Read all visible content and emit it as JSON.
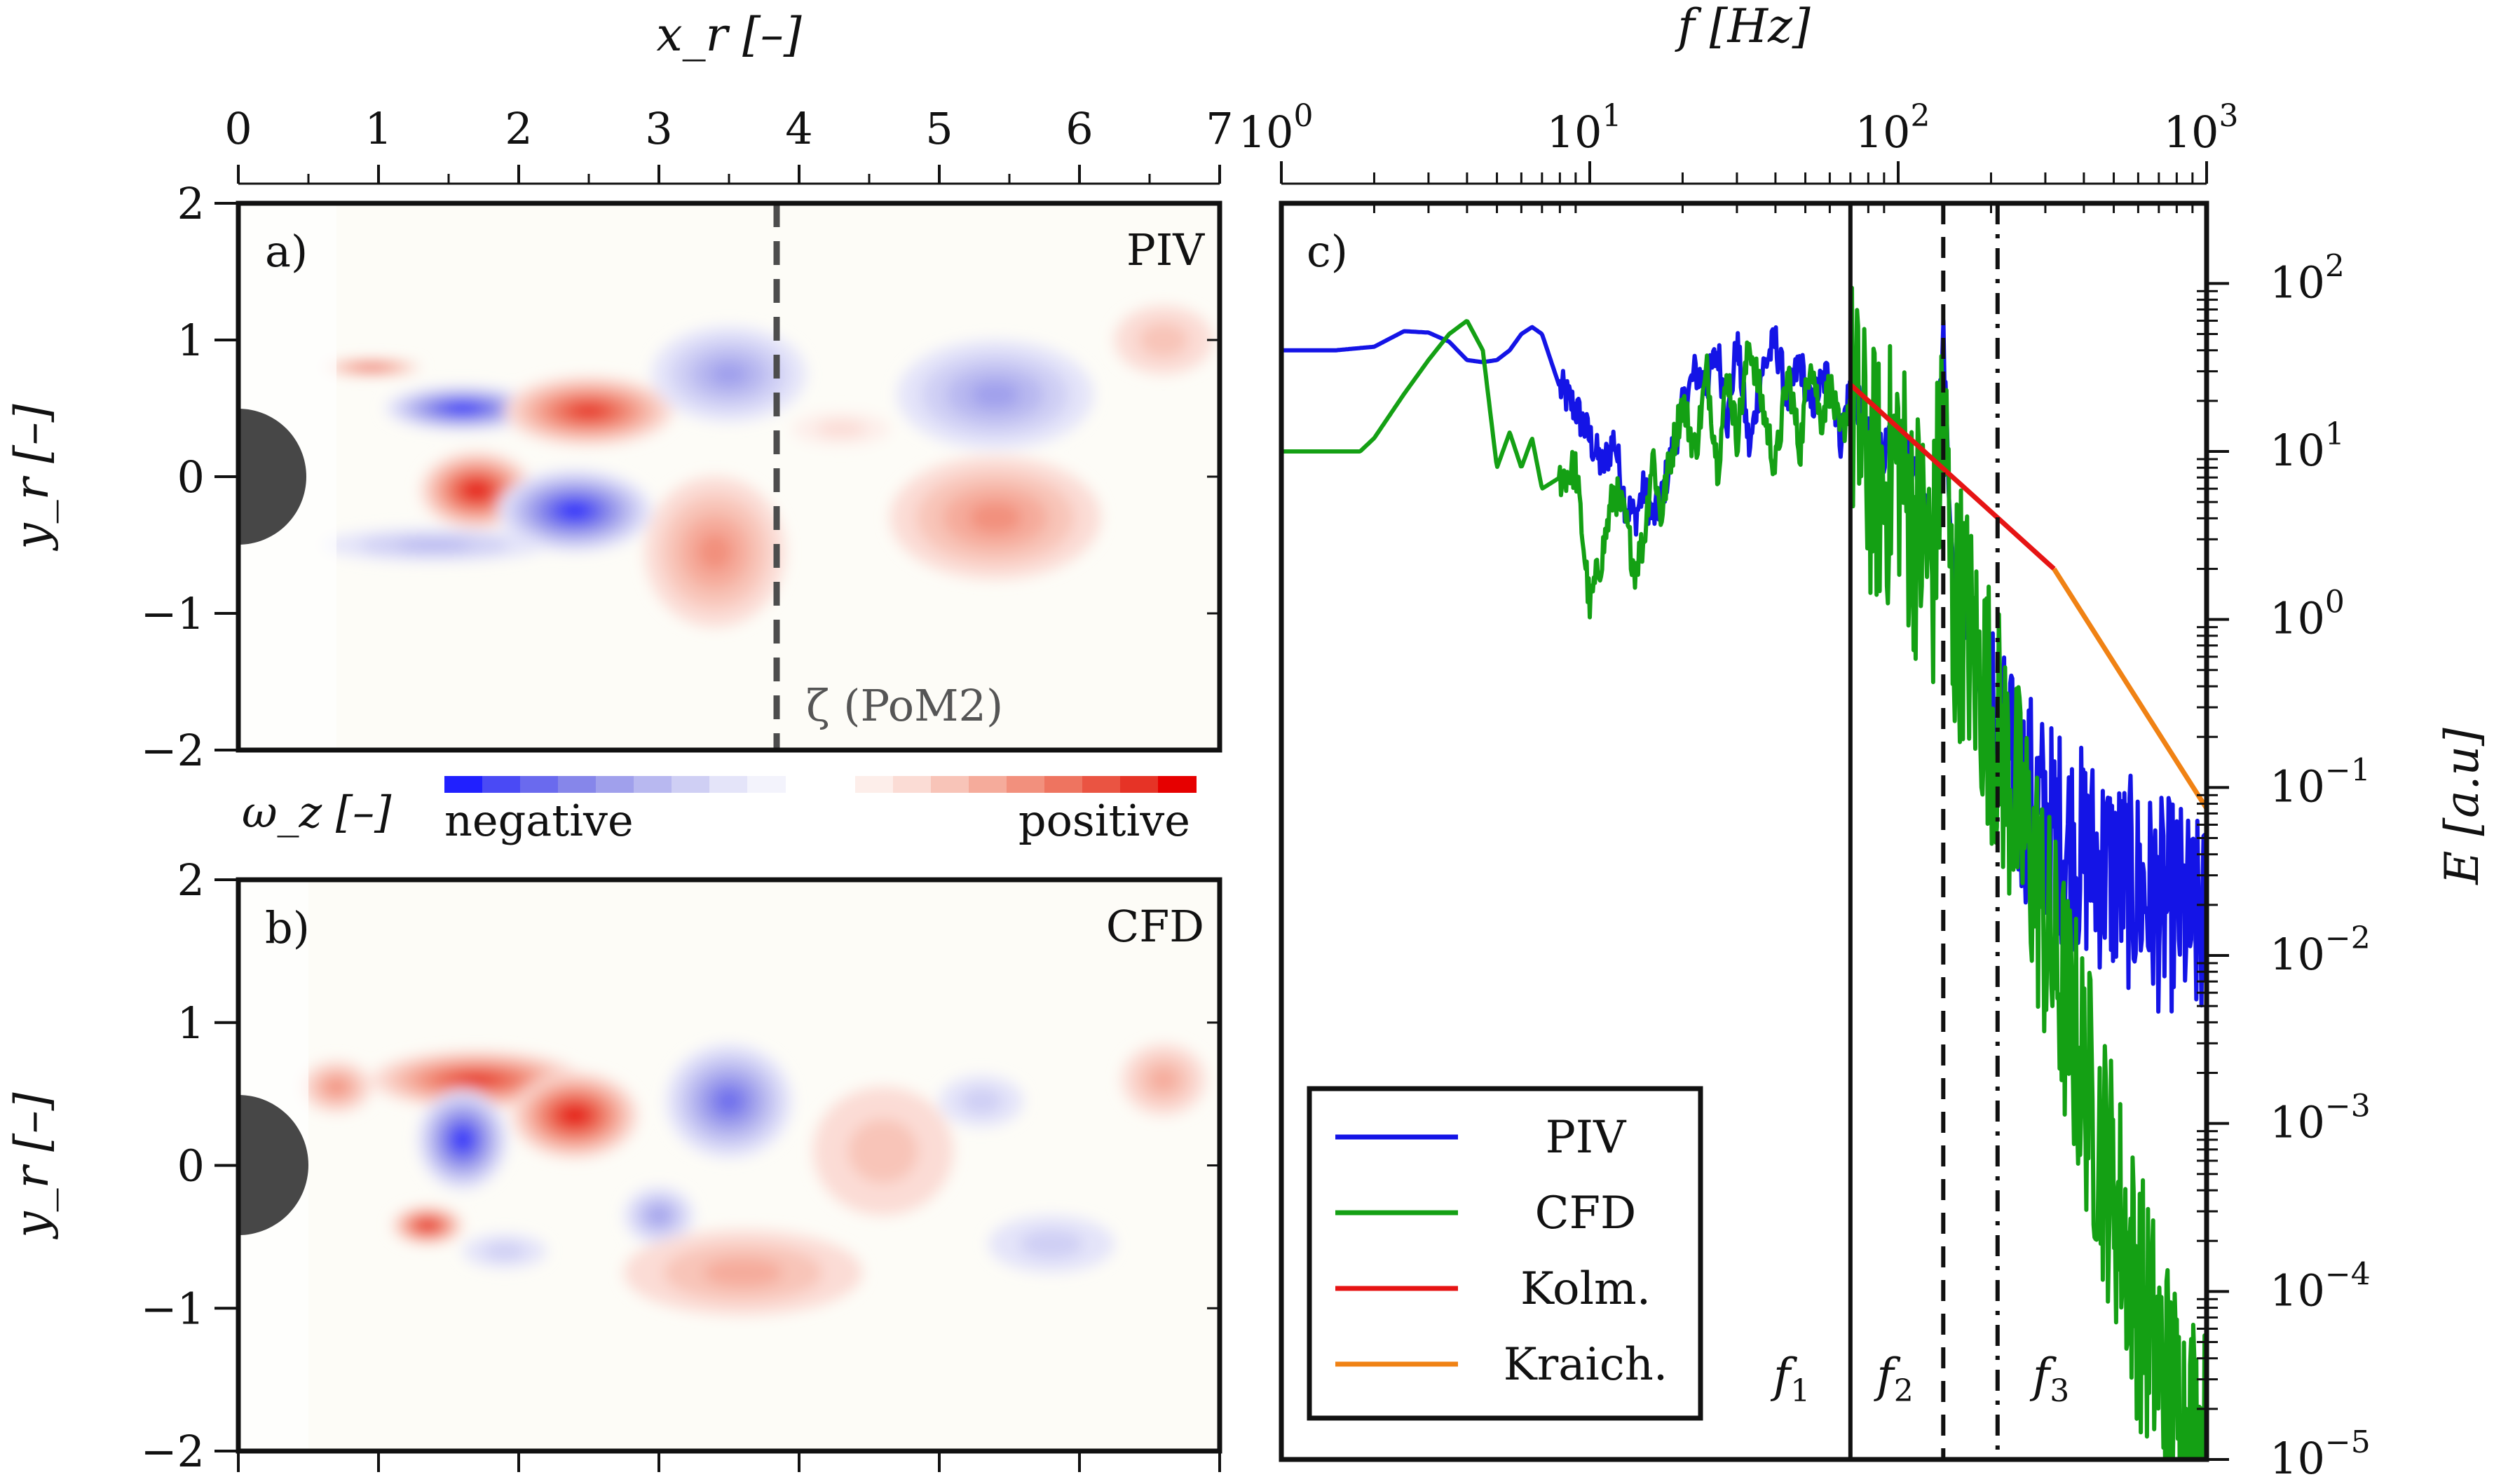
{
  "chart_data": [
    {
      "panel": "a)",
      "type": "heatmap",
      "tag": "PIV",
      "xlabel": "x_r [–]",
      "ylabel": "y_r [–]",
      "xlim": [
        0,
        7
      ],
      "ylim": [
        -2,
        2
      ],
      "xticks": [
        0,
        1,
        2,
        3,
        4,
        5,
        6,
        7
      ],
      "yticks": [
        2,
        1,
        0,
        -1,
        -2
      ],
      "annotation": "ζ (PoM2)",
      "dashed_line_x": 3.84,
      "blobs": [
        {
          "x": 0.95,
          "y": 0.8,
          "rx": 0.35,
          "ry": 0.05,
          "v": 0.9
        },
        {
          "x": 1.6,
          "y": 0.5,
          "rx": 0.55,
          "ry": 0.16,
          "v": -1.0
        },
        {
          "x": 2.5,
          "y": 0.48,
          "rx": 0.6,
          "ry": 0.25,
          "v": 0.9
        },
        {
          "x": 1.7,
          "y": -0.1,
          "rx": 0.4,
          "ry": 0.28,
          "v": 1.0
        },
        {
          "x": 2.4,
          "y": -0.25,
          "rx": 0.55,
          "ry": 0.3,
          "v": -1.0
        },
        {
          "x": 1.4,
          "y": -0.5,
          "rx": 0.8,
          "ry": 0.12,
          "v": -0.35
        },
        {
          "x": 3.5,
          "y": 0.75,
          "rx": 0.55,
          "ry": 0.35,
          "v": -0.55
        },
        {
          "x": 3.4,
          "y": -0.55,
          "rx": 0.5,
          "ry": 0.55,
          "v": 0.45
        },
        {
          "x": 5.4,
          "y": 0.6,
          "rx": 0.7,
          "ry": 0.4,
          "v": -0.5
        },
        {
          "x": 5.4,
          "y": -0.3,
          "rx": 0.75,
          "ry": 0.45,
          "v": 0.5
        },
        {
          "x": 6.6,
          "y": 1.0,
          "rx": 0.35,
          "ry": 0.25,
          "v": 0.2
        },
        {
          "x": 4.3,
          "y": 0.35,
          "rx": 0.35,
          "ry": 0.12,
          "v": 0.12
        }
      ]
    },
    {
      "panel": "b)",
      "type": "heatmap",
      "tag": "CFD",
      "ylabel": "y_r [–]",
      "xlim": [
        0,
        7
      ],
      "ylim": [
        -2,
        2
      ],
      "yticks": [
        2,
        1,
        0,
        -1,
        -2
      ],
      "blobs": [
        {
          "x": 1.7,
          "y": 0.6,
          "rx": 0.75,
          "ry": 0.2,
          "v": 0.85
        },
        {
          "x": 1.6,
          "y": 0.18,
          "rx": 0.32,
          "ry": 0.35,
          "v": -1.0
        },
        {
          "x": 2.4,
          "y": 0.35,
          "rx": 0.45,
          "ry": 0.3,
          "v": 1.0
        },
        {
          "x": 1.35,
          "y": -0.42,
          "rx": 0.25,
          "ry": 0.13,
          "v": 0.95
        },
        {
          "x": 1.9,
          "y": -0.6,
          "rx": 0.3,
          "ry": 0.12,
          "v": -0.3
        },
        {
          "x": 3.5,
          "y": 0.45,
          "rx": 0.45,
          "ry": 0.4,
          "v": -0.8
        },
        {
          "x": 3.0,
          "y": -0.35,
          "rx": 0.25,
          "ry": 0.2,
          "v": -0.45
        },
        {
          "x": 3.6,
          "y": -0.75,
          "rx": 0.85,
          "ry": 0.3,
          "v": 0.4
        },
        {
          "x": 4.6,
          "y": 0.1,
          "rx": 0.5,
          "ry": 0.45,
          "v": 0.3
        },
        {
          "x": 5.3,
          "y": 0.45,
          "rx": 0.3,
          "ry": 0.18,
          "v": -0.25
        },
        {
          "x": 5.8,
          "y": -0.55,
          "rx": 0.45,
          "ry": 0.2,
          "v": -0.25
        },
        {
          "x": 6.6,
          "y": 0.6,
          "rx": 0.3,
          "ry": 0.25,
          "v": 0.35
        },
        {
          "x": 0.7,
          "y": 0.55,
          "rx": 0.25,
          "ry": 0.18,
          "v": 0.55
        }
      ]
    },
    {
      "panel": "c)",
      "type": "line",
      "xlabel": "f [Hz]",
      "ylabel": "E [a.u]",
      "xscale": "log",
      "yscale": "log",
      "xlim": [
        1,
        1000
      ],
      "ylim": [
        1e-05,
        300
      ],
      "xticks": [
        {
          "base": "10",
          "exp": "0"
        },
        {
          "base": "10",
          "exp": "1"
        },
        {
          "base": "10",
          "exp": "2"
        },
        {
          "base": "10",
          "exp": "3"
        }
      ],
      "yticks": [
        {
          "base": "10",
          "exp": "2"
        },
        {
          "base": "10",
          "exp": "1"
        },
        {
          "base": "10",
          "exp": "0"
        },
        {
          "base": "10",
          "exp": "−1"
        },
        {
          "base": "10",
          "exp": "−2"
        },
        {
          "base": "10",
          "exp": "−3"
        },
        {
          "base": "10",
          "exp": "−4"
        },
        {
          "base": "10",
          "exp": "−5"
        }
      ],
      "vlines": [
        {
          "label": "f",
          "sub": "1",
          "x": 70,
          "style": "solid"
        },
        {
          "label": "f",
          "sub": "2",
          "x": 140,
          "style": "dashed"
        },
        {
          "label": "f",
          "sub": "3",
          "x": 210,
          "style": "dashdot"
        }
      ],
      "legend_placement": "bottom-left",
      "series": [
        {
          "name": "PIV",
          "color": "#1414e6",
          "x": [
            1,
            1.5,
            2,
            2.5,
            3,
            3.5,
            4,
            4.5,
            5,
            5.5,
            6,
            6.5,
            7,
            8,
            9,
            10,
            11,
            12,
            13,
            14,
            15,
            16,
            17,
            18,
            19,
            20,
            22,
            24,
            26,
            28,
            30,
            33,
            36,
            40,
            44,
            48,
            52,
            56,
            60,
            65,
            70,
            75,
            80,
            90,
            100,
            110,
            120,
            130,
            140,
            150,
            160,
            170,
            180,
            200,
            220,
            240,
            260,
            280,
            300,
            350,
            400,
            450,
            500,
            600,
            700,
            800,
            900,
            1000
          ],
          "y": [
            40,
            40,
            42,
            52,
            51,
            45,
            35,
            34,
            35,
            40,
            50,
            55,
            50,
            24,
            18,
            12,
            8,
            12,
            5,
            4,
            6,
            4,
            5,
            8,
            12,
            18,
            30,
            25,
            40,
            15,
            45,
            10,
            30,
            45,
            20,
            35,
            18,
            25,
            30,
            12,
            25,
            18,
            12,
            10,
            12,
            8,
            5,
            3,
            50,
            2,
            0.9,
            1.1,
            0.5,
            0.3,
            0.15,
            0.1,
            0.09,
            0.08,
            0.06,
            0.05,
            0.04,
            0.035,
            0.03,
            0.025,
            0.02,
            0.02,
            0.015,
            0.015
          ],
          "noise_from": 200,
          "noise_amp": 1.3
        },
        {
          "name": "CFD",
          "color": "#14a014",
          "x": [
            1,
            1.5,
            1.8,
            2,
            2.5,
            3,
            3.5,
            4,
            4.5,
            5,
            5.5,
            6,
            6.5,
            7,
            8,
            9,
            10,
            11,
            12,
            13,
            14,
            15,
            16,
            17,
            18,
            20,
            22,
            24,
            26,
            28,
            30,
            33,
            36,
            40,
            44,
            48,
            52,
            56,
            60,
            65,
            70,
            75,
            80,
            90,
            100,
            110,
            120,
            130,
            140,
            150,
            160,
            170,
            180,
            200,
            220,
            240,
            260,
            280,
            300,
            350,
            400,
            450,
            500,
            600,
            700,
            800,
            900,
            1000
          ],
          "y": [
            10,
            10,
            10,
            12,
            22,
            35,
            50,
            60,
            40,
            8,
            13,
            8,
            12,
            6,
            7,
            8,
            1.2,
            2.5,
            6,
            4,
            2,
            3,
            10,
            4,
            8,
            20,
            10,
            30,
            8,
            30,
            12,
            45,
            20,
            8,
            30,
            10,
            40,
            15,
            25,
            12,
            20,
            12,
            8,
            6,
            10,
            4,
            3,
            2,
            20,
            1,
            1.2,
            0.8,
            0.5,
            0.3,
            0.15,
            0.08,
            0.05,
            0.03,
            0.015,
            0.005,
            0.002,
            0.0008,
            0.0004,
            0.0001,
            4e-05,
            2e-05,
            1.5e-05,
            1e-05
          ],
          "noise_from": 70,
          "noise_amp": 1.6
        },
        {
          "name": "Kolm.",
          "color": "#e61414",
          "x": [
            70,
            320
          ],
          "y": [
            25,
            2
          ]
        },
        {
          "name": "Kraich.",
          "color": "#f08214",
          "x": [
            320,
            1000
          ],
          "y": [
            2,
            0.075
          ]
        }
      ]
    }
  ],
  "colorbar": {
    "label": "ω_z [–]",
    "negative_label": "negative",
    "positive_label": "positive",
    "negative_colors": [
      "#2020ff",
      "#4a4af5",
      "#6a6aee",
      "#8686ea",
      "#a0a0ec",
      "#b8b8f0",
      "#cfcff4",
      "#e4e4f9",
      "#f3f3fc"
    ],
    "positive_colors": [
      "#fdeeea",
      "#fbdcd5",
      "#f8c4b8",
      "#f5ab9b",
      "#f2907d",
      "#ee7460",
      "#ea5442",
      "#e63326",
      "#e60000"
    ]
  }
}
